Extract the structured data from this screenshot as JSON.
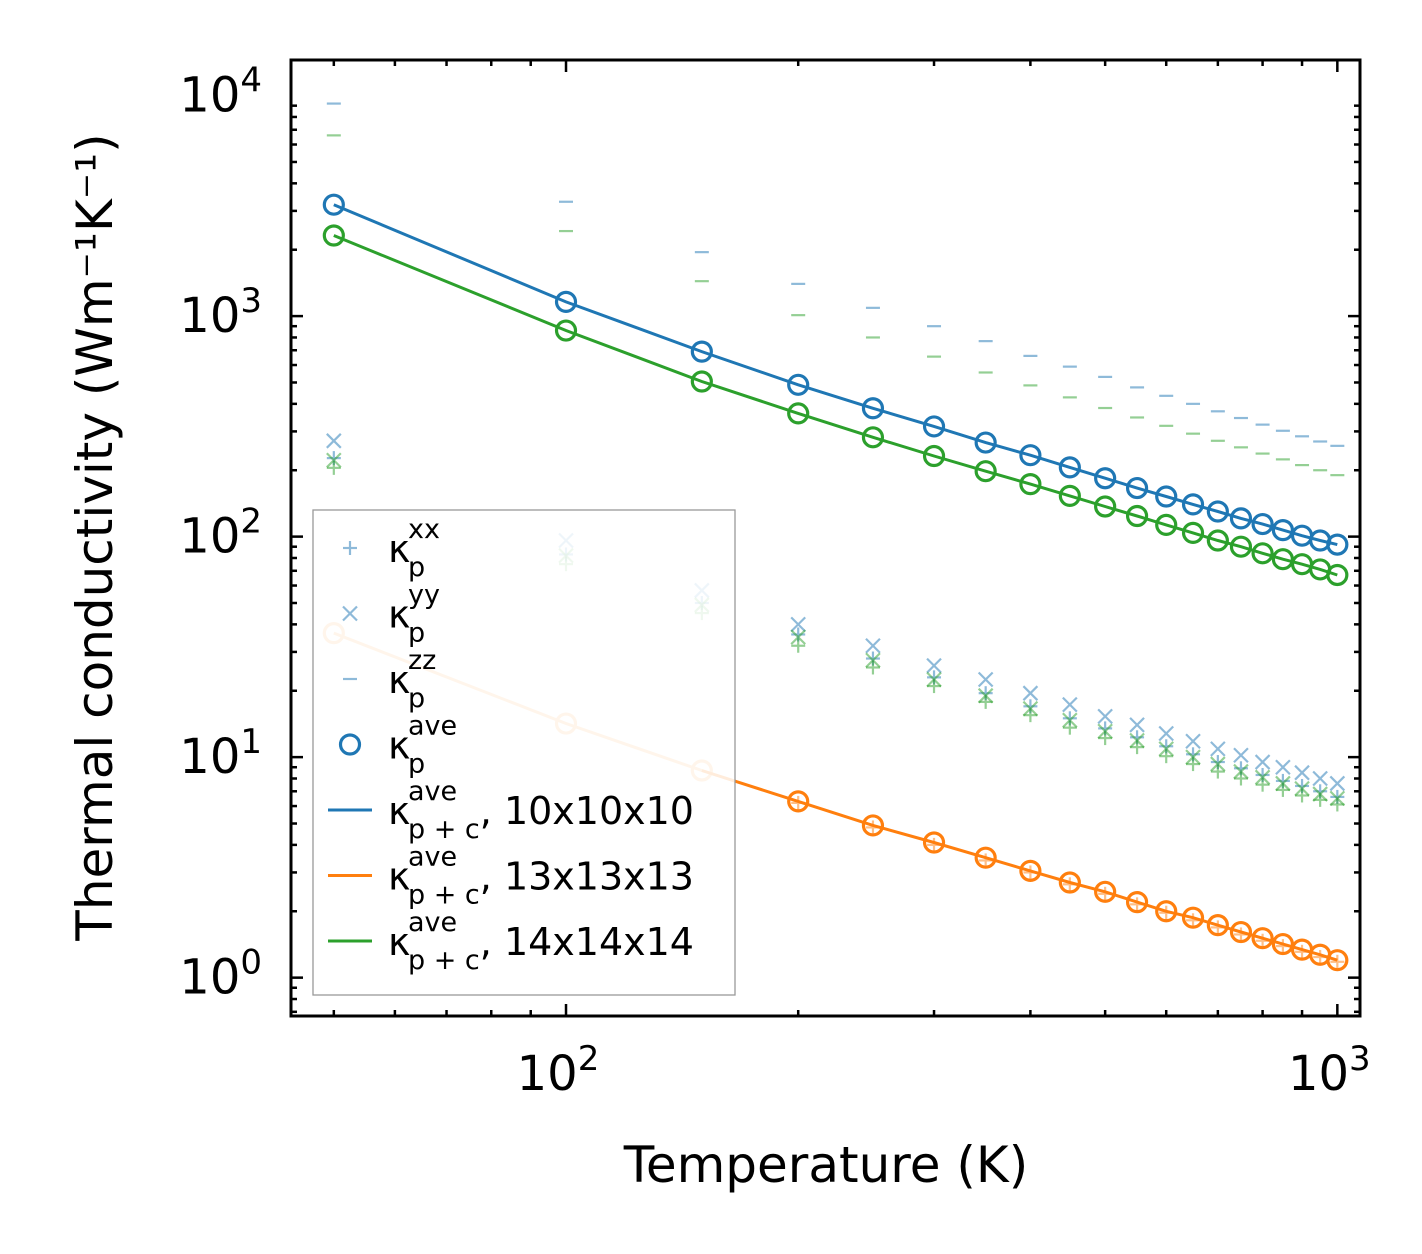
{
  "chart_data": {
    "type": "scatter",
    "scale": {
      "x": "log",
      "y": "log"
    },
    "xlim": [
      44,
      1070
    ],
    "ylim": [
      0.67,
      14500
    ],
    "xlabel": "Temperature (K)",
    "ylabel": "Thermal conductivity (Wm⁻¹K⁻¹)",
    "x_ticks": [
      {
        "value": 100,
        "base": "10",
        "exp": "2"
      },
      {
        "value": 1000,
        "base": "10",
        "exp": "3"
      }
    ],
    "y_ticks": [
      {
        "value": 1,
        "base": "10",
        "exp": "0"
      },
      {
        "value": 10,
        "base": "10",
        "exp": "1"
      },
      {
        "value": 100,
        "base": "10",
        "exp": "2"
      },
      {
        "value": 1000,
        "base": "10",
        "exp": "3"
      },
      {
        "value": 10000,
        "base": "10",
        "exp": "4"
      }
    ],
    "x": [
      50,
      100,
      150,
      200,
      250,
      300,
      350,
      400,
      450,
      500,
      550,
      600,
      650,
      700,
      750,
      800,
      850,
      900,
      950,
      1000
    ],
    "colors": {
      "blue": "#1f77b4",
      "orange": "#ff7f0e",
      "green": "#2ca02c",
      "light_orange": "#ffbb78"
    },
    "series": [
      {
        "name": "10x10x10 κp^xx",
        "color": "#1f77b4",
        "marker": "+",
        "values": [
          227,
          83,
          50,
          36,
          28,
          23,
          19.5,
          17,
          15,
          13.5,
          12.3,
          11.2,
          10.3,
          9.5,
          8.9,
          8.3,
          7.8,
          7.4,
          7.0,
          6.6
        ]
      },
      {
        "name": "10x10x10 κp^yy",
        "color": "#1f77b4",
        "marker": "x",
        "values": [
          272,
          96,
          57,
          40,
          32,
          26,
          22.5,
          19.5,
          17.3,
          15.3,
          14,
          12.8,
          11.8,
          10.9,
          10.2,
          9.5,
          9.0,
          8.5,
          8.0,
          7.6
        ]
      },
      {
        "name": "10x10x10 κp^zz",
        "color": "#1f77b4",
        "marker": "_",
        "values": [
          9200,
          3300,
          1950,
          1400,
          1090,
          900,
          770,
          660,
          590,
          530,
          475,
          435,
          400,
          370,
          345,
          322,
          302,
          285,
          270,
          258
        ]
      },
      {
        "name": "10x10x10 κp^ave",
        "color": "#1f77b4",
        "marker": "o",
        "values": [
          3200,
          1160,
          690,
          488,
          382,
          316,
          267,
          234,
          206,
          184,
          166,
          152,
          140,
          130,
          121,
          114,
          107,
          101,
          96,
          92
        ]
      },
      {
        "name": "14x14x14 κp^xx",
        "color": "#2ca02c",
        "marker": "+",
        "values": [
          205,
          75,
          45,
          32,
          25.5,
          21,
          17.8,
          15.5,
          13.6,
          12.2,
          11.1,
          10.1,
          9.3,
          8.6,
          8.0,
          7.5,
          7.1,
          6.7,
          6.4,
          6.1
        ]
      },
      {
        "name": "14x14x14 κp^yy",
        "color": "#2ca02c",
        "marker": "x",
        "values": [
          222,
          82,
          49,
          35,
          27.5,
          22.5,
          19,
          16.6,
          14.7,
          13.1,
          11.9,
          10.9,
          10.0,
          9.3,
          8.6,
          8.1,
          7.6,
          7.2,
          6.8,
          6.5
        ]
      },
      {
        "name": "14x14x14 κp^zz",
        "color": "#2ca02c",
        "marker": "_",
        "values": [
          6600,
          2430,
          1440,
          1010,
          800,
          655,
          555,
          485,
          428,
          383,
          347,
          318,
          293,
          272,
          254,
          238,
          224,
          211,
          200,
          190
        ]
      },
      {
        "name": "14x14x14 κp^ave",
        "color": "#2ca02c",
        "marker": "o",
        "values": [
          2320,
          860,
          505,
          362,
          282,
          232,
          198,
          173,
          153,
          137,
          124,
          113,
          104,
          96,
          90,
          84,
          79,
          75,
          71,
          67
        ]
      },
      {
        "name": "13x13x13 κp^xx",
        "color": "#ff7f0e",
        "marker": "+",
        "values": [
          null,
          null,
          null,
          6.2,
          4.8,
          4.0,
          3.4,
          3.0,
          2.65,
          2.4,
          2.15,
          1.97,
          1.82,
          1.69,
          1.57,
          1.47,
          1.39,
          1.31,
          1.24,
          1.18
        ]
      },
      {
        "name": "13x13x13 κp^ave",
        "color": "#ff7f0e",
        "marker": "o",
        "values": [
          36.5,
          14.2,
          8.7,
          6.3,
          4.9,
          4.1,
          3.5,
          3.05,
          2.7,
          2.45,
          2.2,
          2.0,
          1.87,
          1.73,
          1.61,
          1.51,
          1.42,
          1.34,
          1.27,
          1.2
        ]
      }
    ],
    "lines": [
      {
        "name": "κp+c^ave, 10x10x10",
        "color": "#1f77b4",
        "values": [
          3200,
          1160,
          690,
          488,
          382,
          316,
          267,
          234,
          206,
          184,
          166,
          152,
          140,
          130,
          121,
          114,
          107,
          101,
          96,
          92
        ]
      },
      {
        "name": "κp+c^ave, 13x13x13",
        "color": "#ff7f0e",
        "values": [
          36.5,
          14.2,
          8.7,
          6.3,
          4.9,
          4.1,
          3.5,
          3.05,
          2.7,
          2.45,
          2.2,
          2.0,
          1.87,
          1.73,
          1.61,
          1.51,
          1.42,
          1.34,
          1.27,
          1.2
        ]
      },
      {
        "name": "κp+c^ave, 14x14x14",
        "color": "#2ca02c",
        "values": [
          2320,
          860,
          505,
          362,
          282,
          232,
          198,
          173,
          153,
          137,
          124,
          113,
          104,
          96,
          90,
          84,
          79,
          75,
          71,
          67
        ]
      }
    ],
    "legend": {
      "position": "lower-left",
      "entries": [
        {
          "marker": "+",
          "color": "#1f77b4",
          "base": "κ",
          "sup": "xx",
          "sub": "p",
          "suffix": ""
        },
        {
          "marker": "x",
          "color": "#1f77b4",
          "base": "κ",
          "sup": "yy",
          "sub": "p",
          "suffix": ""
        },
        {
          "marker": "_",
          "color": "#1f77b4",
          "base": "κ",
          "sup": "zz",
          "sub": "p",
          "suffix": ""
        },
        {
          "marker": "o",
          "color": "#1f77b4",
          "base": "κ",
          "sup": "ave",
          "sub": "p",
          "suffix": ""
        },
        {
          "marker": "line",
          "color": "#1f77b4",
          "base": "κ",
          "sup": "ave",
          "sub": "p + c",
          "suffix": ", 10x10x10"
        },
        {
          "marker": "line",
          "color": "#ff7f0e",
          "base": "κ",
          "sup": "ave",
          "sub": "p + c",
          "suffix": ", 13x13x13"
        },
        {
          "marker": "line",
          "color": "#2ca02c",
          "base": "κ",
          "sup": "ave",
          "sub": "p + c",
          "suffix": ", 14x14x14"
        }
      ]
    }
  }
}
